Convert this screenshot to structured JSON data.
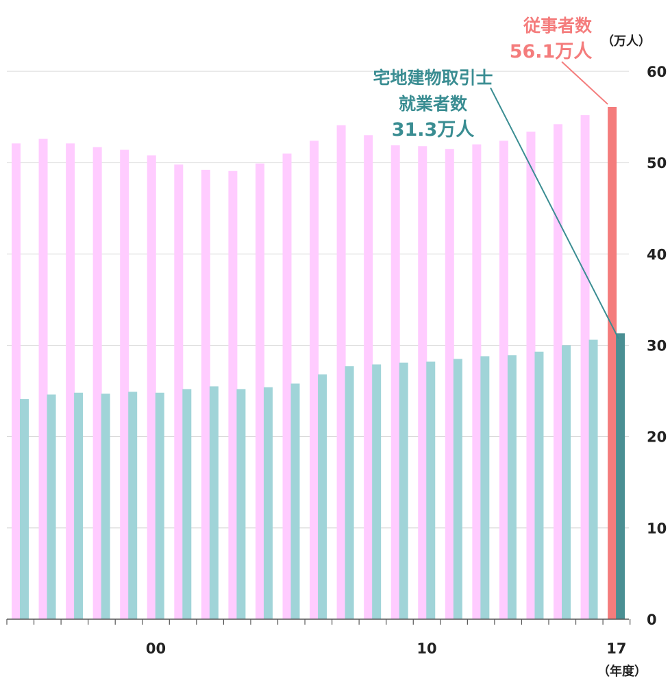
{
  "chart_data": {
    "type": "bar",
    "categories": [
      "",
      "",
      "",
      "",
      "",
      "00",
      "",
      "",
      "",
      "",
      "",
      "",
      "",
      "",
      "",
      "10",
      "",
      "",
      "",
      "",
      "",
      "",
      "17"
    ],
    "xlabel": "（年度）",
    "ylabel_unit": "（万人）",
    "ylim": [
      0,
      60
    ],
    "yticks": [
      0,
      10,
      20,
      30,
      40,
      50,
      60
    ],
    "grid": true,
    "series": [
      {
        "name": "従事者数",
        "values": [
          52.1,
          52.6,
          52.1,
          51.7,
          51.4,
          50.8,
          49.8,
          49.2,
          49.1,
          49.9,
          51.0,
          52.4,
          54.1,
          53.0,
          51.9,
          51.8,
          51.5,
          52.0,
          52.4,
          53.4,
          54.2,
          55.2,
          56.1
        ],
        "color": "#ffccff",
        "highlight_color": "#f47c7c"
      },
      {
        "name": "宅地建物取引士就業者数",
        "values": [
          24.1,
          24.6,
          24.8,
          24.7,
          24.9,
          24.8,
          25.2,
          25.5,
          25.2,
          25.4,
          25.8,
          26.8,
          27.7,
          27.9,
          28.1,
          28.2,
          28.5,
          28.8,
          28.9,
          29.3,
          30.0,
          30.6,
          31.3
        ],
        "color": "#a0d4d8",
        "highlight_color": "#4a8f93"
      }
    ],
    "annotations": {
      "workers_label": "従事者数",
      "workers_value": "56.1万人",
      "workers_color": "#f47c7c",
      "agents_label_line1": "宅地建物取引士",
      "agents_label_line2": "就業者数",
      "agents_value": "31.3万人",
      "agents_color": "#3a8d92"
    }
  }
}
